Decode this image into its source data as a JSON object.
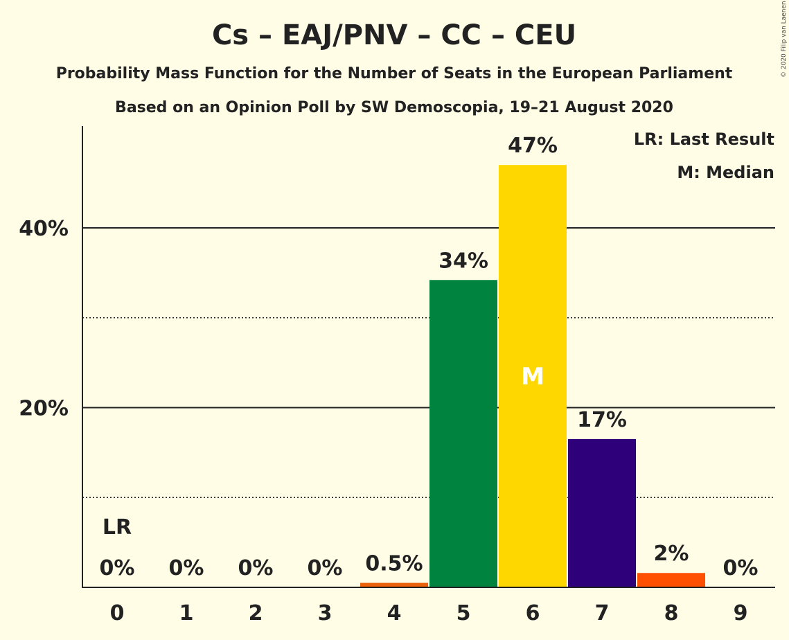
{
  "chart_data": {
    "type": "bar",
    "title": "Cs – EAJ/PNV – CC – CEU",
    "subtitle_1": "Probability Mass Function for the Number of Seats in the European Parliament",
    "subtitle_2": "Based on an Opinion Poll by SW Demoscopia, 19–21 August 2020",
    "copyright": "© 2020 Filip van Laenen",
    "categories": [
      "0",
      "1",
      "2",
      "3",
      "4",
      "5",
      "6",
      "7",
      "8",
      "9"
    ],
    "values": [
      0,
      0,
      0,
      0,
      0.5,
      34.2,
      47.0,
      16.5,
      1.6,
      0
    ],
    "data_labels": [
      "0%",
      "0%",
      "0%",
      "0%",
      "0.5%",
      "34%",
      "47%",
      "17%",
      "2%",
      "0%"
    ],
    "bar_colors": [
      "#F9A8B8",
      "#F9A8B8",
      "#F9A8B8",
      "#F9A8B8",
      "#EB6109",
      "#00833E",
      "#FFD700",
      "#2E0079",
      "#FF4F00",
      "#F9A8B8"
    ],
    "ylim": [
      0,
      51
    ],
    "y_ticks": [
      {
        "value": 20,
        "label": "20%"
      },
      {
        "value": 40,
        "label": "40%"
      }
    ],
    "y_minor_gridlines": [
      10,
      30
    ],
    "grid": true,
    "last_result": {
      "category": "0",
      "label": "LR"
    },
    "median": {
      "category": "6",
      "label": "M"
    },
    "legend_placement": "top-right",
    "legend": [
      "LR: Last Result",
      "M: Median"
    ]
  }
}
